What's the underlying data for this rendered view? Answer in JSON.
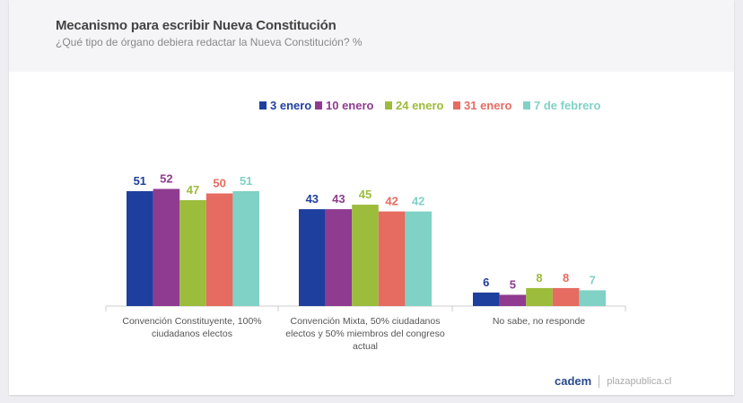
{
  "header": {
    "title": "Mecanismo para escribir Nueva Constitución",
    "subtitle": "¿Qué tipo de órgano debiera redactar la Nueva Constitución? %"
  },
  "footer": {
    "brand": "cadem",
    "site": "plazapublica.cl"
  },
  "chart_data": {
    "type": "bar",
    "categories": [
      "Convención Constituyente, 100% ciudadanos electos",
      "Convención Mixta, 50% ciudadanos electos y 50% miembros del congreso actual",
      "No sabe, no responde"
    ],
    "category_lines": [
      [
        "Convención Constituyente, 100%",
        "ciudadanos electos"
      ],
      [
        "Convención Mixta, 50% ciudadanos",
        "electos y 50% miembros del congreso",
        "actual"
      ],
      [
        "No sabe, no responde"
      ]
    ],
    "series": [
      {
        "name": "3 enero",
        "color": "#1f3f9f",
        "values": [
          51,
          43,
          6
        ]
      },
      {
        "name": "10 enero",
        "color": "#8f3b8f",
        "values": [
          52,
          43,
          5
        ]
      },
      {
        "name": "24 enero",
        "color": "#9cbc3b",
        "values": [
          47,
          45,
          8
        ]
      },
      {
        "name": "31 enero",
        "color": "#e66b61",
        "values": [
          50,
          42,
          8
        ]
      },
      {
        "name": "7 de febrero",
        "color": "#80d1c6",
        "values": [
          51,
          42,
          7
        ]
      }
    ],
    "legend": "top-right",
    "grid": false,
    "ylim": [
      0,
      55
    ]
  }
}
